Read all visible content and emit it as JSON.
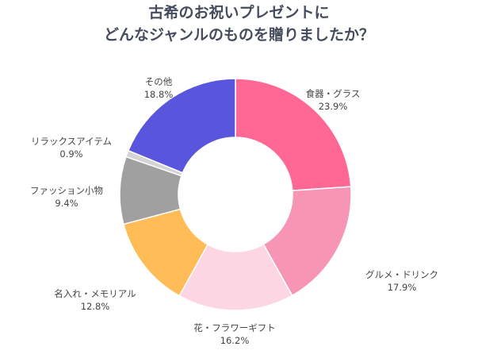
{
  "chart_data": {
    "type": "pie",
    "donut": true,
    "title": [
      "古希のお祝いプレゼントに",
      "どんなジャンルのものを贈りましたか？"
    ],
    "categories": [
      "食器・グラス",
      "グルメ・ドリンク",
      "花・フラワーギフト",
      "名入れ・メモリアル",
      "ファッション小物",
      "リラックスアイテム",
      "その他"
    ],
    "values": [
      23.9,
      17.9,
      16.2,
      12.8,
      9.4,
      0.9,
      18.8
    ],
    "value_labels": [
      "23.9%",
      "17.9%",
      "16.2%",
      "12.8%",
      "9.4%",
      "0.9%",
      "18.8%"
    ],
    "colors": [
      "#FF6895",
      "#F796B4",
      "#FDD6E4",
      "#FFBC57",
      "#A0A0A0",
      "#D4D4D4",
      "#5A55DD"
    ],
    "legend": "none"
  }
}
